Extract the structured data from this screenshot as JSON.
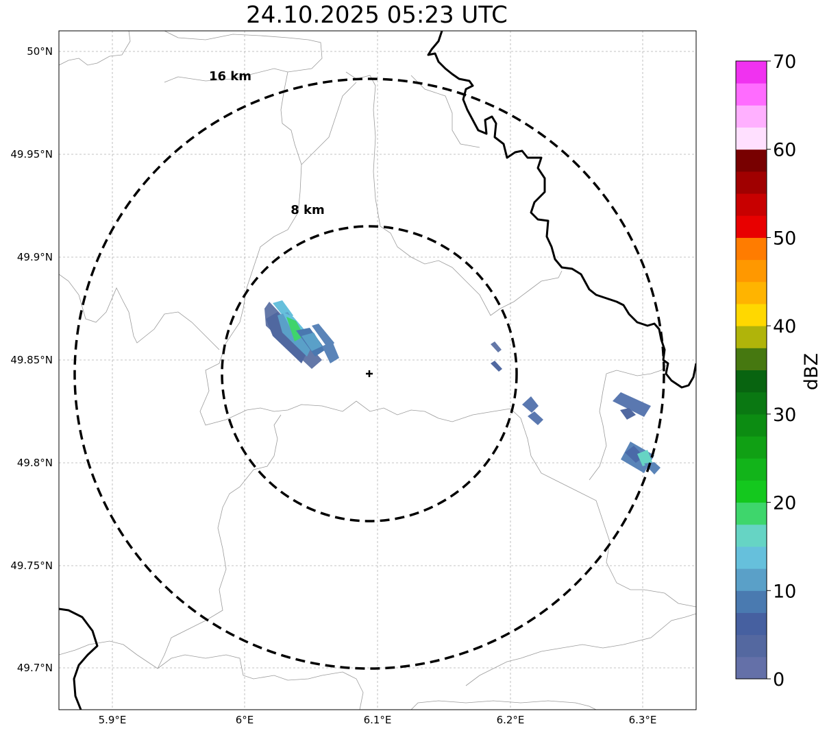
{
  "title": "24.10.2025 05:23 UTC",
  "map": {
    "lat_ticks": [
      "50°N",
      "49.95°N",
      "49.9°N",
      "49.85°N",
      "49.8°N",
      "49.75°N",
      "49.7°N"
    ],
    "lon_ticks": [
      "5.9°E",
      "6°E",
      "6.1°E",
      "6.2°E",
      "6.3°E"
    ],
    "gridlines": true,
    "radar_site_marker": "plus-icon",
    "range_rings": [
      {
        "label": "8 km",
        "radius_km": 8
      },
      {
        "label": "16 km",
        "radius_km": 16
      }
    ],
    "echo_colors": [
      "#6478a8",
      "#5068a0",
      "#4a78b0",
      "#5a9ec8",
      "#66c0dc",
      "#3fd46c"
    ]
  },
  "colorbar": {
    "label": "dBZ",
    "tick_labels": [
      "0",
      "10",
      "20",
      "30",
      "40",
      "50",
      "60",
      "70"
    ],
    "colors": [
      "#6470a8",
      "#5468a0",
      "#4660a0",
      "#4a7ab0",
      "#5aa0c8",
      "#66c0dc",
      "#66d4c4",
      "#3ed66c",
      "#14c81e",
      "#12b41a",
      "#10a014",
      "#0c8c12",
      "#0a7812",
      "#086410",
      "#467810",
      "#b0b40a",
      "#ffd800",
      "#ffb400",
      "#ff9800",
      "#ff7c00",
      "#e80000",
      "#c80000",
      "#a00000",
      "#780000",
      "#ffe0ff",
      "#ffb0ff",
      "#ff6cff",
      "#f032f0"
    ]
  }
}
